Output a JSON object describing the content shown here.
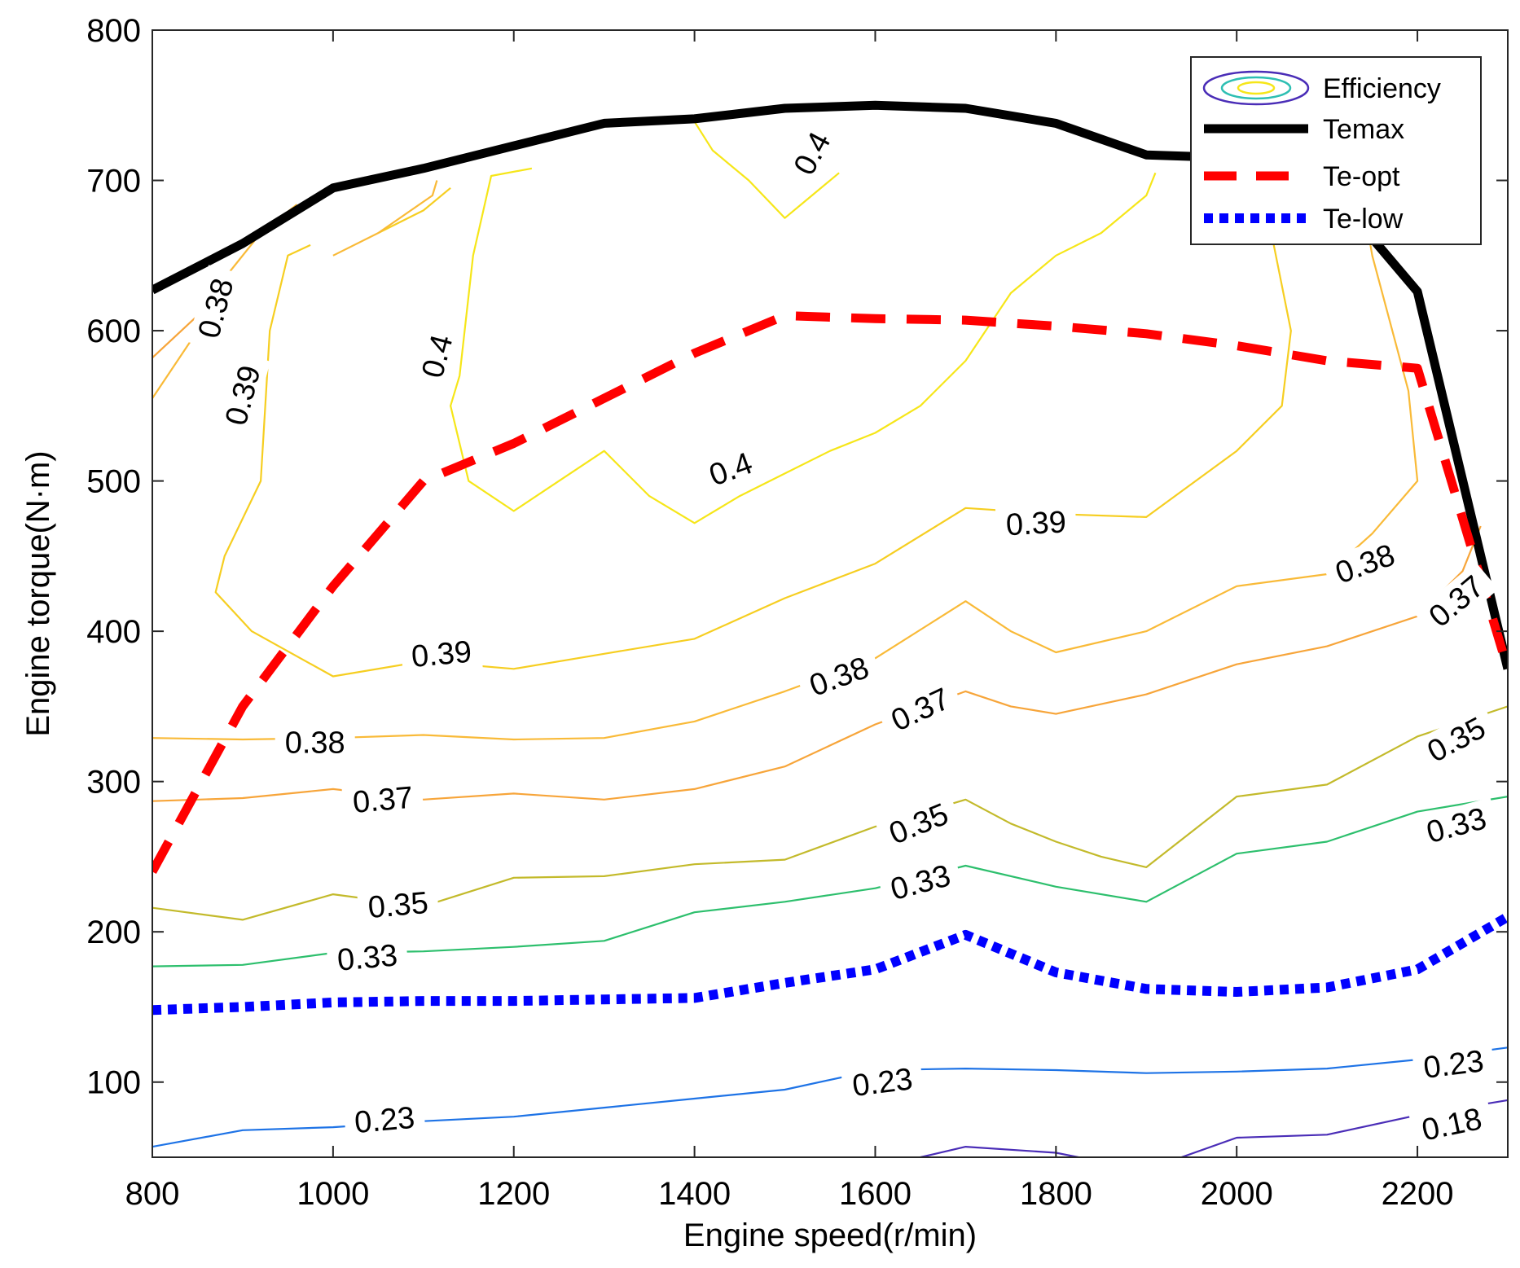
{
  "chart_data": {
    "type": "contour",
    "xlabel": "Engine  speed(r/min)",
    "ylabel": "Engine  torque(N·m)",
    "xlim": [
      800,
      2300
    ],
    "ylim": [
      50,
      800
    ],
    "xticks": [
      800,
      1000,
      1200,
      1400,
      1600,
      1800,
      2000,
      2200
    ],
    "yticks": [
      100,
      200,
      300,
      400,
      500,
      600,
      700,
      800
    ],
    "legend": {
      "position": "top-right",
      "entries": [
        {
          "key": "efficiency",
          "label": "Efficiency"
        },
        {
          "key": "temax",
          "label": "Temax"
        },
        {
          "key": "teopt",
          "label": "Te-opt"
        },
        {
          "key": "telow",
          "label": "Te-low"
        }
      ]
    },
    "lines": {
      "temax": {
        "name": "Temax",
        "color": "#000000",
        "points": [
          [
            800,
            627
          ],
          [
            900,
            658
          ],
          [
            1000,
            695
          ],
          [
            1100,
            708
          ],
          [
            1200,
            723
          ],
          [
            1300,
            738
          ],
          [
            1400,
            741
          ],
          [
            1500,
            748
          ],
          [
            1600,
            750
          ],
          [
            1700,
            748
          ],
          [
            1800,
            738
          ],
          [
            1900,
            717
          ],
          [
            2000,
            715
          ],
          [
            2100,
            697
          ],
          [
            2200,
            626
          ],
          [
            2300,
            375
          ]
        ]
      },
      "teopt": {
        "name": "Te-opt",
        "color": "#ff0000",
        "points": [
          [
            800,
            240
          ],
          [
            900,
            350
          ],
          [
            1000,
            430
          ],
          [
            1100,
            500
          ],
          [
            1200,
            525
          ],
          [
            1300,
            555
          ],
          [
            1400,
            585
          ],
          [
            1500,
            610
          ],
          [
            1600,
            608
          ],
          [
            1700,
            607
          ],
          [
            1800,
            603
          ],
          [
            1900,
            598
          ],
          [
            2000,
            590
          ],
          [
            2100,
            580
          ],
          [
            2200,
            575
          ],
          [
            2300,
            375
          ]
        ]
      },
      "telow": {
        "name": "Te-low",
        "color": "#0000ff",
        "points": [
          [
            800,
            148
          ],
          [
            900,
            150
          ],
          [
            1000,
            153
          ],
          [
            1100,
            154
          ],
          [
            1200,
            154
          ],
          [
            1300,
            155
          ],
          [
            1400,
            156
          ],
          [
            1500,
            166
          ],
          [
            1600,
            175
          ],
          [
            1700,
            198
          ],
          [
            1800,
            173
          ],
          [
            1900,
            162
          ],
          [
            2000,
            160
          ],
          [
            2100,
            163
          ],
          [
            2200,
            175
          ],
          [
            2300,
            210
          ]
        ]
      }
    },
    "contours": [
      {
        "level": "0.4",
        "color": "#f6e619",
        "paths": [
          [
            [
              1398,
              741
            ],
            [
              1420,
              720
            ],
            [
              1460,
              700
            ],
            [
              1500,
              675
            ],
            [
              1530,
              690
            ],
            [
              1560,
              705
            ]
          ],
          [
            [
              1220,
              708
            ],
            [
              1175,
              703
            ],
            [
              1155,
              650
            ],
            [
              1140,
              570
            ],
            [
              1130,
              550
            ],
            [
              1150,
              500
            ],
            [
              1200,
              480
            ],
            [
              1250,
              500
            ],
            [
              1300,
              520
            ],
            [
              1350,
              490
            ],
            [
              1400,
              472
            ],
            [
              1450,
              490
            ],
            [
              1500,
              505
            ],
            [
              1550,
              520
            ],
            [
              1600,
              532
            ],
            [
              1650,
              550
            ],
            [
              1700,
              580
            ],
            [
              1750,
              625
            ],
            [
              1800,
              650
            ],
            [
              1850,
              665
            ],
            [
              1900,
              690
            ],
            [
              1910,
              705
            ]
          ]
        ],
        "labels": [
          {
            "x": 1530,
            "y": 718,
            "angle": -62
          },
          {
            "x": 1115,
            "y": 583,
            "angle": -75
          },
          {
            "x": 1440,
            "y": 508,
            "angle": -20
          }
        ]
      },
      {
        "level": "0.39",
        "color": "#f6ce21",
        "paths": [
          [
            [
              975,
              657
            ],
            [
              950,
              650
            ],
            [
              930,
              600
            ],
            [
              920,
              500
            ],
            [
              880,
              450
            ],
            [
              870,
              426
            ],
            [
              910,
              400
            ],
            [
              1000,
              370
            ],
            [
              1100,
              380
            ],
            [
              1200,
              375
            ],
            [
              1300,
              385
            ],
            [
              1400,
              395
            ],
            [
              1500,
              422
            ],
            [
              1600,
              445
            ],
            [
              1700,
              482
            ],
            [
              1800,
              478
            ],
            [
              1900,
              476
            ],
            [
              2000,
              520
            ],
            [
              2050,
              550
            ],
            [
              2060,
              600
            ],
            [
              2040,
              660
            ],
            [
              2030,
              697
            ]
          ],
          [
            [
              1130,
              695
            ],
            [
              1100,
              680
            ],
            [
              1050,
              665
            ]
          ]
        ],
        "labels": [
          {
            "x": 900,
            "y": 557,
            "angle": -75
          },
          {
            "x": 1120,
            "y": 385,
            "angle": -5
          },
          {
            "x": 1778,
            "y": 472,
            "angle": -3
          }
        ]
      },
      {
        "level": "0.38",
        "color": "#f9ba38",
        "paths": [
          [
            [
              800,
              329
            ],
            [
              900,
              328
            ],
            [
              1000,
              329
            ],
            [
              1100,
              331
            ],
            [
              1200,
              328
            ],
            [
              1300,
              329
            ],
            [
              1400,
              340
            ],
            [
              1500,
              360
            ],
            [
              1600,
              382
            ],
            [
              1700,
              420
            ],
            [
              1750,
              400
            ],
            [
              1800,
              386
            ],
            [
              1900,
              400
            ],
            [
              2000,
              430
            ],
            [
              2100,
              438
            ],
            [
              2150,
              465
            ],
            [
              2200,
              500
            ],
            [
              2190,
              560
            ],
            [
              2150,
              650
            ],
            [
              2140,
              685
            ]
          ],
          [
            [
              800,
              555
            ],
            [
              850,
              600
            ],
            [
              880,
              635
            ],
            [
              920,
              665
            ],
            [
              960,
              684
            ]
          ],
          [
            [
              1000,
              650
            ],
            [
              1050,
              665
            ],
            [
              1110,
              690
            ],
            [
              1115,
              700
            ]
          ]
        ],
        "labels": [
          {
            "x": 870,
            "y": 615,
            "angle": -75
          },
          {
            "x": 980,
            "y": 326,
            "angle": 0
          },
          {
            "x": 1560,
            "y": 370,
            "angle": -20
          },
          {
            "x": 2142,
            "y": 445,
            "angle": -20
          }
        ]
      },
      {
        "level": "0.37",
        "color": "#f7a53a",
        "paths": [
          [
            [
              800,
              287
            ],
            [
              900,
              289
            ],
            [
              1000,
              295
            ],
            [
              1100,
              288
            ],
            [
              1200,
              292
            ],
            [
              1300,
              288
            ],
            [
              1400,
              295
            ],
            [
              1500,
              310
            ],
            [
              1600,
              338
            ],
            [
              1700,
              360
            ],
            [
              1750,
              350
            ],
            [
              1800,
              345
            ],
            [
              1900,
              358
            ],
            [
              2000,
              378
            ],
            [
              2100,
              390
            ],
            [
              2200,
              410
            ],
            [
              2250,
              440
            ],
            [
              2270,
              470
            ]
          ],
          [
            [
              800,
              582
            ],
            [
              850,
              610
            ],
            [
              870,
              625
            ]
          ]
        ],
        "labels": [
          {
            "x": 1055,
            "y": 288,
            "angle": -5
          },
          {
            "x": 1650,
            "y": 348,
            "angle": -25
          },
          {
            "x": 2243,
            "y": 420,
            "angle": -40
          }
        ]
      },
      {
        "level": "0.35",
        "color": "#c3ba2b",
        "paths": [
          [
            [
              800,
              216
            ],
            [
              900,
              208
            ],
            [
              1000,
              225
            ],
            [
              1100,
              217
            ],
            [
              1200,
              236
            ],
            [
              1300,
              237
            ],
            [
              1400,
              245
            ],
            [
              1500,
              248
            ],
            [
              1600,
              270
            ],
            [
              1700,
              288
            ],
            [
              1750,
              272
            ],
            [
              1800,
              260
            ],
            [
              1850,
              250
            ],
            [
              1900,
              243
            ],
            [
              2000,
              290
            ],
            [
              2100,
              298
            ],
            [
              2200,
              330
            ],
            [
              2300,
              350
            ]
          ]
        ],
        "labels": [
          {
            "x": 1072,
            "y": 218,
            "angle": -5
          },
          {
            "x": 1648,
            "y": 272,
            "angle": -22
          },
          {
            "x": 2243,
            "y": 328,
            "angle": -28
          }
        ]
      },
      {
        "level": "0.33",
        "color": "#2dbf6d",
        "paths": [
          [
            [
              800,
              177
            ],
            [
              900,
              178
            ],
            [
              1000,
              186
            ],
            [
              1100,
              187
            ],
            [
              1200,
              190
            ],
            [
              1300,
              194
            ],
            [
              1400,
              213
            ],
            [
              1500,
              220
            ],
            [
              1600,
              229
            ],
            [
              1700,
              244
            ],
            [
              1800,
              230
            ],
            [
              1900,
              220
            ],
            [
              2000,
              252
            ],
            [
              2100,
              260
            ],
            [
              2200,
              280
            ],
            [
              2300,
              290
            ]
          ]
        ],
        "labels": [
          {
            "x": 1038,
            "y": 183,
            "angle": -5
          },
          {
            "x": 1650,
            "y": 233,
            "angle": -15
          },
          {
            "x": 2243,
            "y": 271,
            "angle": -15
          }
        ]
      },
      {
        "level": "0.23",
        "color": "#1e73e6",
        "paths": [
          [
            [
              800,
              57
            ],
            [
              900,
              68
            ],
            [
              1000,
              70
            ],
            [
              1100,
              74
            ],
            [
              1200,
              77
            ],
            [
              1300,
              83
            ],
            [
              1400,
              89
            ],
            [
              1500,
              95
            ],
            [
              1600,
              108
            ],
            [
              1700,
              109
            ],
            [
              1800,
              108
            ],
            [
              1900,
              106
            ],
            [
              2000,
              107
            ],
            [
              2100,
              109
            ],
            [
              2200,
              115
            ],
            [
              2300,
              123
            ]
          ]
        ],
        "labels": [
          {
            "x": 1057,
            "y": 75,
            "angle": -5
          },
          {
            "x": 1608,
            "y": 100,
            "angle": -7
          },
          {
            "x": 2240,
            "y": 112,
            "angle": -7
          }
        ]
      },
      {
        "level": "0.18",
        "color": "#4a2db7",
        "paths": [
          [
            [
              1650,
              50
            ],
            [
              1700,
              57
            ],
            [
              1800,
              53
            ],
            [
              1850,
              47
            ]
          ],
          [
            [
              1925,
              47
            ],
            [
              2000,
              63
            ],
            [
              2100,
              65
            ],
            [
              2200,
              78
            ],
            [
              2300,
              88
            ]
          ]
        ],
        "labels": [
          {
            "x": 2238,
            "y": 72,
            "angle": -12
          }
        ]
      }
    ]
  }
}
